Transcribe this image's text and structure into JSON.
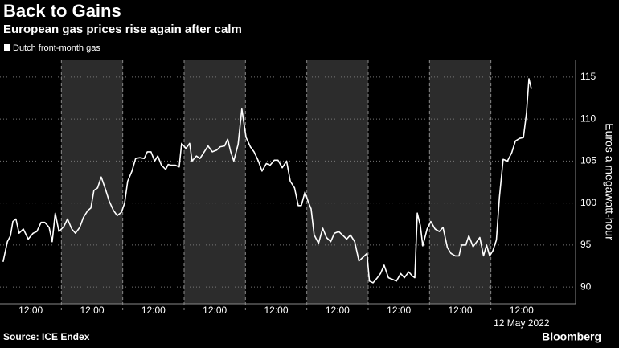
{
  "chart_data": {
    "type": "line",
    "title": "Back to Gains",
    "subtitle": "European gas prices rise again after calm",
    "y_label": "Euros a megawatt-hour",
    "source": "Source: ICE Endex",
    "brand": "Bloomberg",
    "date_label": "12 May 2022",
    "xlim": [
      0,
      9.38
    ],
    "xticks": [
      {
        "value": 0.5,
        "label": "12:00"
      },
      {
        "value": 1.5,
        "label": "12:00"
      },
      {
        "value": 2.5,
        "label": "12:00"
      },
      {
        "value": 3.5,
        "label": "12:00"
      },
      {
        "value": 4.5,
        "label": "12:00"
      },
      {
        "value": 5.5,
        "label": "12:00"
      },
      {
        "value": 6.5,
        "label": "12:00"
      },
      {
        "value": 7.5,
        "label": "12:00"
      },
      {
        "value": 8.5,
        "label": "12:00"
      }
    ],
    "shaded_bands": [
      [
        1,
        2
      ],
      [
        3,
        4
      ],
      [
        5,
        6
      ],
      [
        7,
        8
      ]
    ],
    "ylim": [
      88,
      117
    ],
    "yticks": [
      90,
      95,
      100,
      105,
      110,
      115
    ],
    "grid": true,
    "series": [
      {
        "name": "Dutch front-month gas",
        "color": "#ffffff",
        "x": [
          0.05,
          0.12,
          0.17,
          0.21,
          0.26,
          0.31,
          0.38,
          0.46,
          0.54,
          0.6,
          0.67,
          0.73,
          0.8,
          0.85,
          0.9,
          0.96,
          1.04,
          1.1,
          1.17,
          1.23,
          1.3,
          1.36,
          1.43,
          1.48,
          1.53,
          1.59,
          1.65,
          1.72,
          1.78,
          1.85,
          1.91,
          1.98,
          2.03,
          2.08,
          2.15,
          2.21,
          2.28,
          2.35,
          2.4,
          2.46,
          2.52,
          2.57,
          2.63,
          2.7,
          2.74,
          2.79,
          2.86,
          2.92,
          2.96,
          3.03,
          3.09,
          3.13,
          3.2,
          3.26,
          3.32,
          3.39,
          3.46,
          3.53,
          3.59,
          3.66,
          3.71,
          3.76,
          3.81,
          3.88,
          3.94,
          4.01,
          4.08,
          4.14,
          4.21,
          4.27,
          4.34,
          4.4,
          4.47,
          4.53,
          4.6,
          4.67,
          4.73,
          4.8,
          4.86,
          4.91,
          4.97,
          5.02,
          5.07,
          5.12,
          5.19,
          5.26,
          5.32,
          5.39,
          5.45,
          5.52,
          5.58,
          5.65,
          5.71,
          5.78,
          5.85,
          5.91,
          5.98,
          6.02,
          6.08,
          6.15,
          6.2,
          6.26,
          6.33,
          6.4,
          6.46,
          6.53,
          6.59,
          6.66,
          6.72,
          6.76,
          6.8,
          6.85,
          6.89,
          6.96,
          7.02,
          7.09,
          7.16,
          7.22,
          7.29,
          7.35,
          7.42,
          7.48,
          7.52,
          7.59,
          7.64,
          7.71,
          7.77,
          7.82,
          7.88,
          7.93,
          7.98,
          8.03,
          8.09,
          8.14,
          8.2,
          8.27,
          8.34,
          8.4,
          8.47,
          8.53,
          8.58,
          8.62,
          8.66
        ],
        "values": [
          93.0,
          95.4,
          96.1,
          97.8,
          98.1,
          96.4,
          96.9,
          95.7,
          96.4,
          96.6,
          97.7,
          97.7,
          97.1,
          95.4,
          98.8,
          96.6,
          97.2,
          98.1,
          96.9,
          96.4,
          97.1,
          98.3,
          99.1,
          99.4,
          101.5,
          101.8,
          103.1,
          101.6,
          100.2,
          99.1,
          98.5,
          98.9,
          100.0,
          102.6,
          103.8,
          105.3,
          105.4,
          105.3,
          106.1,
          106.1,
          105.0,
          105.6,
          104.5,
          104.0,
          104.6,
          104.5,
          104.5,
          104.3,
          107.1,
          106.5,
          107.1,
          105.0,
          105.6,
          105.3,
          106.0,
          106.8,
          106.1,
          106.3,
          106.7,
          106.8,
          107.6,
          106.1,
          105.0,
          107.0,
          111.2,
          107.8,
          106.7,
          106.1,
          105.0,
          103.8,
          104.7,
          104.5,
          105.1,
          105.1,
          104.2,
          105.0,
          102.6,
          101.8,
          99.7,
          99.7,
          101.3,
          100.2,
          99.3,
          96.2,
          95.2,
          97.0,
          95.9,
          95.4,
          96.4,
          96.6,
          96.2,
          95.7,
          96.2,
          95.4,
          93.1,
          93.5,
          94.0,
          90.7,
          90.5,
          91.1,
          91.6,
          92.6,
          91.1,
          90.9,
          90.7,
          91.6,
          91.1,
          91.8,
          91.3,
          91.1,
          98.8,
          97.3,
          94.9,
          96.9,
          97.8,
          96.9,
          96.6,
          97.1,
          94.7,
          94.0,
          93.7,
          93.7,
          95.0,
          95.0,
          96.1,
          94.8,
          95.4,
          95.9,
          93.7,
          95.0,
          93.7,
          94.3,
          95.6,
          100.7,
          105.2,
          105.0,
          106.0,
          107.4,
          107.7,
          107.8,
          110.7,
          114.8,
          113.6
        ]
      }
    ]
  }
}
